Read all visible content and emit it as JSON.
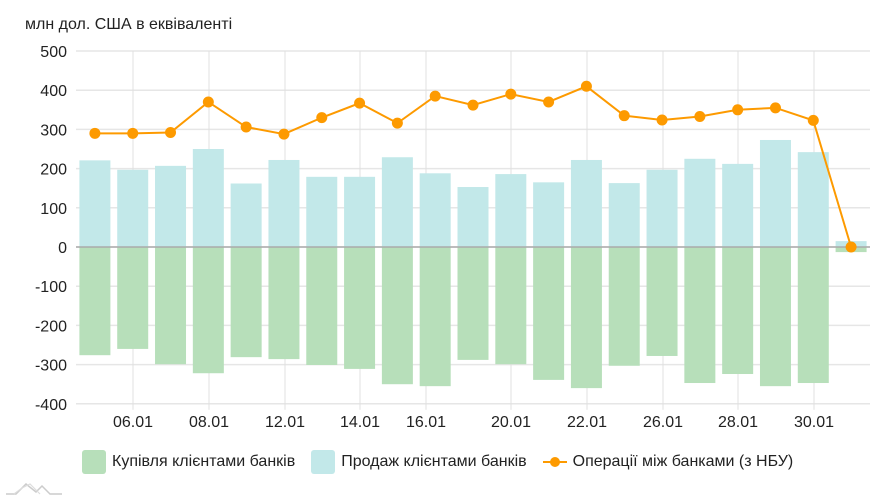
{
  "chart_data": {
    "type": "bar",
    "title": "",
    "ylabel": "млн дол. США в еквіваленті",
    "xlabel": "",
    "ylim": [
      -400,
      500
    ],
    "yticks": [
      500,
      400,
      300,
      200,
      100,
      0,
      -100,
      -200,
      -300,
      -400
    ],
    "xtick_labels": [
      "06.01",
      "08.01",
      "12.01",
      "14.01",
      "16.01",
      "20.01",
      "22.01",
      "26.01",
      "28.01",
      "30.01"
    ],
    "grid": true,
    "legend_position": "bottom",
    "n_points": 21,
    "series": [
      {
        "name": "Купівля клієнтами банків",
        "type": "bar",
        "color": "#b7dfba",
        "values": [
          -276,
          -260,
          -299,
          -322,
          -281,
          -286,
          -301,
          -311,
          -350,
          -355,
          -288,
          -299,
          -339,
          -360,
          -303,
          -278,
          -347,
          -324,
          -355,
          -347,
          -13
        ]
      },
      {
        "name": "Продаж клієнтами банків",
        "type": "bar",
        "color": "#c2e8e9",
        "values": [
          221,
          197,
          207,
          250,
          162,
          222,
          179,
          179,
          229,
          188,
          153,
          186,
          165,
          222,
          163,
          197,
          225,
          212,
          273,
          242,
          15
        ]
      },
      {
        "name": "Операції між банками (з НБУ)",
        "type": "line",
        "color": "#fd9a00",
        "values": [
          290,
          290,
          292,
          370,
          306,
          288,
          330,
          367,
          316,
          385,
          362,
          390,
          370,
          410,
          335,
          324,
          333,
          350,
          355,
          323,
          0
        ]
      }
    ]
  },
  "ui": {
    "unit_label": "млн дол. США в еквіваленті",
    "legend": [
      {
        "label": "Купівля клієнтами банків",
        "color": "#b7dfba"
      },
      {
        "label": "Продаж клієнтами банків",
        "color": "#c2e8e9"
      },
      {
        "label": "Операції між банками (з НБУ)",
        "color": "#fd9a00"
      }
    ]
  }
}
